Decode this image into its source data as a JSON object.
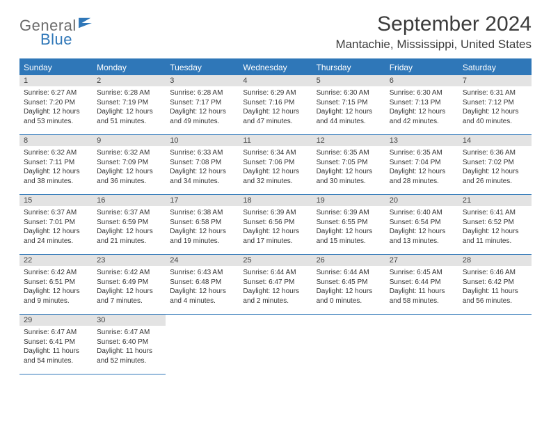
{
  "brand": {
    "text1": "General",
    "text2": "Blue"
  },
  "title": "September 2024",
  "location": "Mantachie, Mississippi, United States",
  "colors": {
    "accent": "#2f77b8",
    "header_text": "#ffffff",
    "daynum_bg": "#e3e3e3",
    "body_text": "#333333",
    "title_text": "#3c3c3c"
  },
  "day_headers": [
    "Sunday",
    "Monday",
    "Tuesday",
    "Wednesday",
    "Thursday",
    "Friday",
    "Saturday"
  ],
  "days": [
    {
      "n": "1",
      "sunrise": "Sunrise: 6:27 AM",
      "sunset": "Sunset: 7:20 PM",
      "d1": "Daylight: 12 hours",
      "d2": "and 53 minutes."
    },
    {
      "n": "2",
      "sunrise": "Sunrise: 6:28 AM",
      "sunset": "Sunset: 7:19 PM",
      "d1": "Daylight: 12 hours",
      "d2": "and 51 minutes."
    },
    {
      "n": "3",
      "sunrise": "Sunrise: 6:28 AM",
      "sunset": "Sunset: 7:17 PM",
      "d1": "Daylight: 12 hours",
      "d2": "and 49 minutes."
    },
    {
      "n": "4",
      "sunrise": "Sunrise: 6:29 AM",
      "sunset": "Sunset: 7:16 PM",
      "d1": "Daylight: 12 hours",
      "d2": "and 47 minutes."
    },
    {
      "n": "5",
      "sunrise": "Sunrise: 6:30 AM",
      "sunset": "Sunset: 7:15 PM",
      "d1": "Daylight: 12 hours",
      "d2": "and 44 minutes."
    },
    {
      "n": "6",
      "sunrise": "Sunrise: 6:30 AM",
      "sunset": "Sunset: 7:13 PM",
      "d1": "Daylight: 12 hours",
      "d2": "and 42 minutes."
    },
    {
      "n": "7",
      "sunrise": "Sunrise: 6:31 AM",
      "sunset": "Sunset: 7:12 PM",
      "d1": "Daylight: 12 hours",
      "d2": "and 40 minutes."
    },
    {
      "n": "8",
      "sunrise": "Sunrise: 6:32 AM",
      "sunset": "Sunset: 7:11 PM",
      "d1": "Daylight: 12 hours",
      "d2": "and 38 minutes."
    },
    {
      "n": "9",
      "sunrise": "Sunrise: 6:32 AM",
      "sunset": "Sunset: 7:09 PM",
      "d1": "Daylight: 12 hours",
      "d2": "and 36 minutes."
    },
    {
      "n": "10",
      "sunrise": "Sunrise: 6:33 AM",
      "sunset": "Sunset: 7:08 PM",
      "d1": "Daylight: 12 hours",
      "d2": "and 34 minutes."
    },
    {
      "n": "11",
      "sunrise": "Sunrise: 6:34 AM",
      "sunset": "Sunset: 7:06 PM",
      "d1": "Daylight: 12 hours",
      "d2": "and 32 minutes."
    },
    {
      "n": "12",
      "sunrise": "Sunrise: 6:35 AM",
      "sunset": "Sunset: 7:05 PM",
      "d1": "Daylight: 12 hours",
      "d2": "and 30 minutes."
    },
    {
      "n": "13",
      "sunrise": "Sunrise: 6:35 AM",
      "sunset": "Sunset: 7:04 PM",
      "d1": "Daylight: 12 hours",
      "d2": "and 28 minutes."
    },
    {
      "n": "14",
      "sunrise": "Sunrise: 6:36 AM",
      "sunset": "Sunset: 7:02 PM",
      "d1": "Daylight: 12 hours",
      "d2": "and 26 minutes."
    },
    {
      "n": "15",
      "sunrise": "Sunrise: 6:37 AM",
      "sunset": "Sunset: 7:01 PM",
      "d1": "Daylight: 12 hours",
      "d2": "and 24 minutes."
    },
    {
      "n": "16",
      "sunrise": "Sunrise: 6:37 AM",
      "sunset": "Sunset: 6:59 PM",
      "d1": "Daylight: 12 hours",
      "d2": "and 21 minutes."
    },
    {
      "n": "17",
      "sunrise": "Sunrise: 6:38 AM",
      "sunset": "Sunset: 6:58 PM",
      "d1": "Daylight: 12 hours",
      "d2": "and 19 minutes."
    },
    {
      "n": "18",
      "sunrise": "Sunrise: 6:39 AM",
      "sunset": "Sunset: 6:56 PM",
      "d1": "Daylight: 12 hours",
      "d2": "and 17 minutes."
    },
    {
      "n": "19",
      "sunrise": "Sunrise: 6:39 AM",
      "sunset": "Sunset: 6:55 PM",
      "d1": "Daylight: 12 hours",
      "d2": "and 15 minutes."
    },
    {
      "n": "20",
      "sunrise": "Sunrise: 6:40 AM",
      "sunset": "Sunset: 6:54 PM",
      "d1": "Daylight: 12 hours",
      "d2": "and 13 minutes."
    },
    {
      "n": "21",
      "sunrise": "Sunrise: 6:41 AM",
      "sunset": "Sunset: 6:52 PM",
      "d1": "Daylight: 12 hours",
      "d2": "and 11 minutes."
    },
    {
      "n": "22",
      "sunrise": "Sunrise: 6:42 AM",
      "sunset": "Sunset: 6:51 PM",
      "d1": "Daylight: 12 hours",
      "d2": "and 9 minutes."
    },
    {
      "n": "23",
      "sunrise": "Sunrise: 6:42 AM",
      "sunset": "Sunset: 6:49 PM",
      "d1": "Daylight: 12 hours",
      "d2": "and 7 minutes."
    },
    {
      "n": "24",
      "sunrise": "Sunrise: 6:43 AM",
      "sunset": "Sunset: 6:48 PM",
      "d1": "Daylight: 12 hours",
      "d2": "and 4 minutes."
    },
    {
      "n": "25",
      "sunrise": "Sunrise: 6:44 AM",
      "sunset": "Sunset: 6:47 PM",
      "d1": "Daylight: 12 hours",
      "d2": "and 2 minutes."
    },
    {
      "n": "26",
      "sunrise": "Sunrise: 6:44 AM",
      "sunset": "Sunset: 6:45 PM",
      "d1": "Daylight: 12 hours",
      "d2": "and 0 minutes."
    },
    {
      "n": "27",
      "sunrise": "Sunrise: 6:45 AM",
      "sunset": "Sunset: 6:44 PM",
      "d1": "Daylight: 11 hours",
      "d2": "and 58 minutes."
    },
    {
      "n": "28",
      "sunrise": "Sunrise: 6:46 AM",
      "sunset": "Sunset: 6:42 PM",
      "d1": "Daylight: 11 hours",
      "d2": "and 56 minutes."
    },
    {
      "n": "29",
      "sunrise": "Sunrise: 6:47 AM",
      "sunset": "Sunset: 6:41 PM",
      "d1": "Daylight: 11 hours",
      "d2": "and 54 minutes."
    },
    {
      "n": "30",
      "sunrise": "Sunrise: 6:47 AM",
      "sunset": "Sunset: 6:40 PM",
      "d1": "Daylight: 11 hours",
      "d2": "and 52 minutes."
    }
  ]
}
